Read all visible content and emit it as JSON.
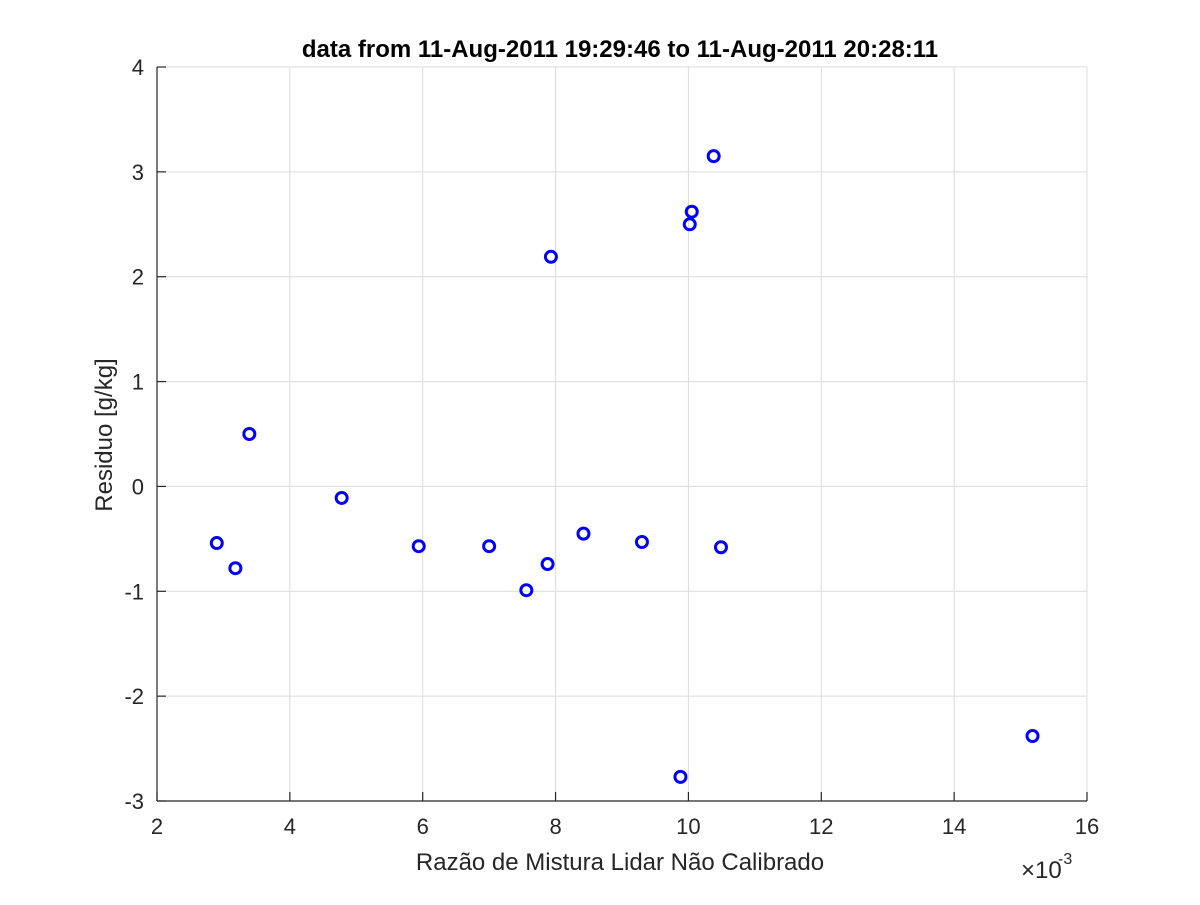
{
  "chart_data": {
    "type": "scatter",
    "title": "data from 11-Aug-2011 19:29:46 to 11-Aug-2011 20:28:11",
    "xlabel": "Razão de Mistura Lidar Não Calibrado",
    "ylabel": "Residuo [g/kg]",
    "x_multiplier_label": "×10",
    "x_multiplier_exponent": "-3",
    "xlim": [
      0.002,
      0.016
    ],
    "ylim": [
      -3,
      4
    ],
    "xticks": [
      0.002,
      0.004,
      0.006,
      0.008,
      0.01,
      0.012,
      0.014,
      0.016
    ],
    "xtick_labels": [
      "2",
      "4",
      "6",
      "8",
      "10",
      "12",
      "14",
      "16"
    ],
    "yticks": [
      -3,
      -2,
      -1,
      0,
      1,
      2,
      3,
      4
    ],
    "ytick_labels": [
      "-3",
      "-2",
      "-1",
      "0",
      "1",
      "2",
      "3",
      "4"
    ],
    "grid": true,
    "marker": "circle",
    "color": "#0000ff",
    "points": [
      {
        "x": 0.0029,
        "y": -0.54
      },
      {
        "x": 0.00318,
        "y": -0.78
      },
      {
        "x": 0.00339,
        "y": 0.5
      },
      {
        "x": 0.00478,
        "y": -0.11
      },
      {
        "x": 0.00594,
        "y": -0.57
      },
      {
        "x": 0.007,
        "y": -0.57
      },
      {
        "x": 0.00756,
        "y": -0.99
      },
      {
        "x": 0.00788,
        "y": -0.74
      },
      {
        "x": 0.00793,
        "y": 2.19
      },
      {
        "x": 0.00842,
        "y": -0.45
      },
      {
        "x": 0.0093,
        "y": -0.53
      },
      {
        "x": 0.00988,
        "y": -2.77
      },
      {
        "x": 0.01002,
        "y": 2.5
      },
      {
        "x": 0.01005,
        "y": 2.62
      },
      {
        "x": 0.01038,
        "y": 3.15
      },
      {
        "x": 0.01049,
        "y": -0.58
      },
      {
        "x": 0.01518,
        "y": -2.38
      }
    ]
  }
}
